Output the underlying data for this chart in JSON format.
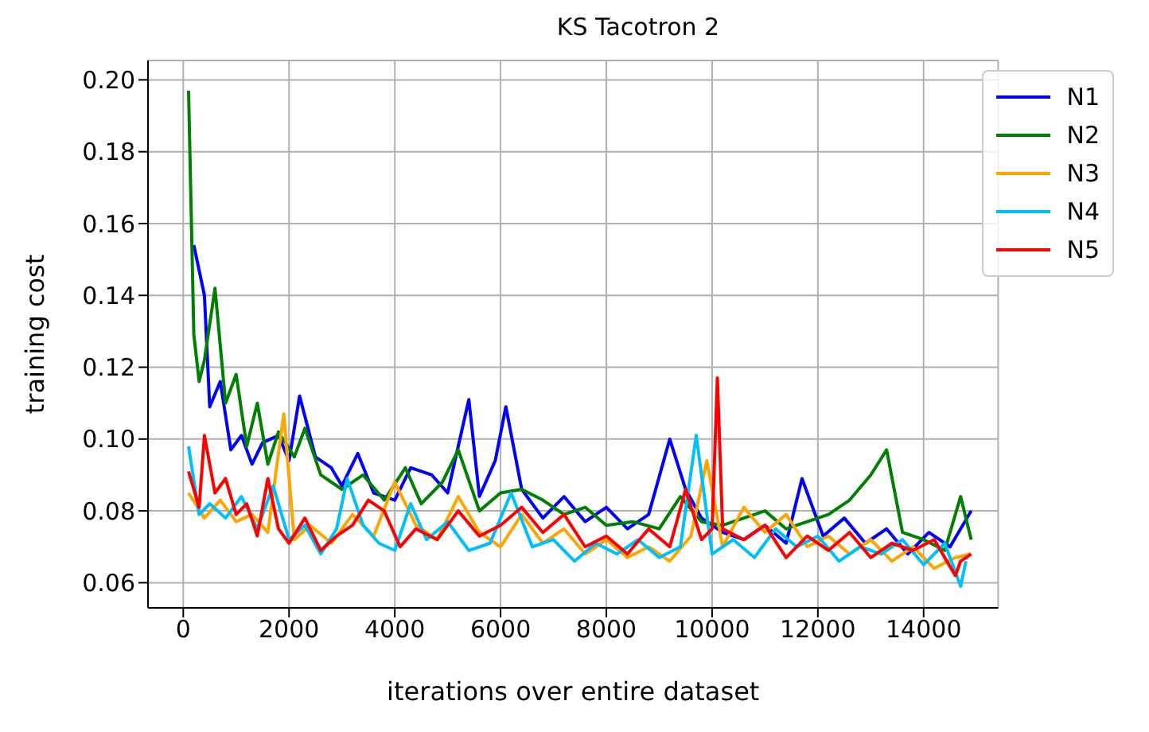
{
  "chart_data": {
    "type": "line",
    "title": "KS Tacotron 2",
    "xlabel": "iterations over entire dataset",
    "ylabel": "training cost",
    "xlim": [
      -667,
      15410
    ],
    "xticks": [
      0,
      2000,
      4000,
      6000,
      8000,
      10000,
      12000,
      14000
    ],
    "ylim": [
      0.053,
      0.2054
    ],
    "yticks": [
      0.06,
      0.08,
      {
        "value": 0.1,
        "label": "0.10"
      },
      0.12,
      0.14,
      0.16,
      0.18,
      {
        "value": 0.2,
        "label": "0.20"
      }
    ],
    "grid": true,
    "legend": "top right",
    "marker": "none",
    "line_style": "solid",
    "series": [
      {
        "name": "N1",
        "color": "#0000ff",
        "x": [
          200,
          400,
          500,
          700,
          900,
          1100,
          1300,
          1500,
          1800,
          2000,
          2200,
          2500,
          2800,
          3000,
          3300,
          3600,
          4000,
          4300,
          4700,
          5000,
          5400,
          5600,
          5900,
          6100,
          6400,
          6800,
          7200,
          7600,
          8000,
          8400,
          8800,
          9200,
          9500,
          9800,
          10200,
          10600,
          11000,
          11400,
          11700,
          12100,
          12500,
          12900,
          13300,
          13700,
          14100,
          14500,
          14900
        ],
        "values": [
          0.154,
          0.14,
          0.109,
          0.116,
          0.097,
          0.101,
          0.093,
          0.099,
          0.101,
          0.094,
          0.112,
          0.095,
          0.092,
          0.087,
          0.096,
          0.085,
          0.083,
          0.092,
          0.09,
          0.085,
          0.111,
          0.084,
          0.094,
          0.109,
          0.086,
          0.078,
          0.084,
          0.077,
          0.081,
          0.075,
          0.079,
          0.1,
          0.086,
          0.078,
          0.074,
          0.072,
          0.076,
          0.071,
          0.089,
          0.073,
          0.078,
          0.071,
          0.075,
          0.068,
          0.074,
          0.07,
          0.08
        ]
      },
      {
        "name": "N2",
        "color": "#008000",
        "x": [
          100,
          200,
          300,
          400,
          600,
          800,
          1000,
          1200,
          1400,
          1600,
          1800,
          2100,
          2300,
          2600,
          3000,
          3400,
          3800,
          4200,
          4500,
          4900,
          5200,
          5600,
          6000,
          6400,
          6800,
          7200,
          7600,
          8000,
          8500,
          9000,
          9400,
          9800,
          10200,
          10600,
          11000,
          11400,
          11800,
          12200,
          12600,
          13000,
          13300,
          13600,
          14000,
          14400,
          14700,
          14900
        ],
        "values": [
          0.197,
          0.129,
          0.116,
          0.122,
          0.142,
          0.11,
          0.118,
          0.098,
          0.11,
          0.093,
          0.102,
          0.095,
          0.103,
          0.09,
          0.086,
          0.09,
          0.083,
          0.092,
          0.082,
          0.088,
          0.097,
          0.08,
          0.085,
          0.086,
          0.083,
          0.079,
          0.081,
          0.076,
          0.077,
          0.075,
          0.084,
          0.077,
          0.076,
          0.078,
          0.08,
          0.075,
          0.077,
          0.079,
          0.083,
          0.09,
          0.097,
          0.074,
          0.072,
          0.069,
          0.084,
          0.072
        ]
      },
      {
        "name": "N3",
        "color": "#ffa500",
        "x": [
          100,
          400,
          700,
          1000,
          1300,
          1600,
          1900,
          2100,
          2400,
          2800,
          3200,
          3600,
          4000,
          4400,
          4800,
          5200,
          5600,
          6000,
          6400,
          6800,
          7200,
          7600,
          8000,
          8400,
          8800,
          9200,
          9600,
          9900,
          10200,
          10600,
          11000,
          11400,
          11800,
          12200,
          12600,
          13000,
          13400,
          13800,
          14200,
          14600,
          14900
        ],
        "values": [
          0.085,
          0.078,
          0.083,
          0.077,
          0.079,
          0.074,
          0.107,
          0.072,
          0.076,
          0.071,
          0.079,
          0.073,
          0.088,
          0.076,
          0.072,
          0.084,
          0.074,
          0.07,
          0.079,
          0.071,
          0.075,
          0.068,
          0.072,
          0.067,
          0.07,
          0.066,
          0.073,
          0.094,
          0.07,
          0.081,
          0.074,
          0.079,
          0.07,
          0.073,
          0.068,
          0.072,
          0.066,
          0.07,
          0.064,
          0.067,
          0.068
        ]
      },
      {
        "name": "N4",
        "color": "#00bfff",
        "x": [
          100,
          300,
          500,
          800,
          1100,
          1400,
          1700,
          2000,
          2300,
          2600,
          2900,
          3100,
          3400,
          3700,
          4000,
          4300,
          4600,
          5000,
          5400,
          5800,
          6200,
          6600,
          7000,
          7400,
          7800,
          8200,
          8600,
          9000,
          9400,
          9700,
          10000,
          10400,
          10800,
          11200,
          11600,
          12000,
          12400,
          12800,
          13200,
          13600,
          14000,
          14400,
          14700,
          14800
        ],
        "values": [
          0.098,
          0.079,
          0.082,
          0.078,
          0.084,
          0.075,
          0.087,
          0.072,
          0.076,
          0.068,
          0.075,
          0.089,
          0.076,
          0.071,
          0.069,
          0.082,
          0.072,
          0.077,
          0.069,
          0.071,
          0.085,
          0.07,
          0.072,
          0.066,
          0.071,
          0.068,
          0.072,
          0.067,
          0.07,
          0.101,
          0.068,
          0.072,
          0.067,
          0.075,
          0.07,
          0.073,
          0.066,
          0.07,
          0.068,
          0.072,
          0.065,
          0.071,
          0.059,
          0.066
        ]
      },
      {
        "name": "N5",
        "color": "#ff0000",
        "x": [
          100,
          300,
          400,
          600,
          800,
          1000,
          1200,
          1400,
          1600,
          1800,
          2000,
          2300,
          2600,
          2900,
          3200,
          3500,
          3800,
          4100,
          4400,
          4800,
          5200,
          5600,
          6000,
          6400,
          6800,
          7200,
          7600,
          8000,
          8400,
          8800,
          9200,
          9500,
          9800,
          10000,
          10100,
          10200,
          10600,
          11000,
          11400,
          11800,
          12200,
          12600,
          13000,
          13400,
          13800,
          14200,
          14600,
          14700,
          14900
        ],
        "values": [
          0.091,
          0.081,
          0.101,
          0.085,
          0.089,
          0.079,
          0.082,
          0.073,
          0.089,
          0.075,
          0.071,
          0.078,
          0.069,
          0.073,
          0.076,
          0.083,
          0.08,
          0.07,
          0.075,
          0.072,
          0.08,
          0.073,
          0.076,
          0.081,
          0.074,
          0.079,
          0.07,
          0.073,
          0.068,
          0.075,
          0.07,
          0.086,
          0.072,
          0.075,
          0.117,
          0.075,
          0.072,
          0.076,
          0.067,
          0.073,
          0.069,
          0.074,
          0.067,
          0.071,
          0.069,
          0.072,
          0.062,
          0.066,
          0.068
        ]
      }
    ]
  }
}
